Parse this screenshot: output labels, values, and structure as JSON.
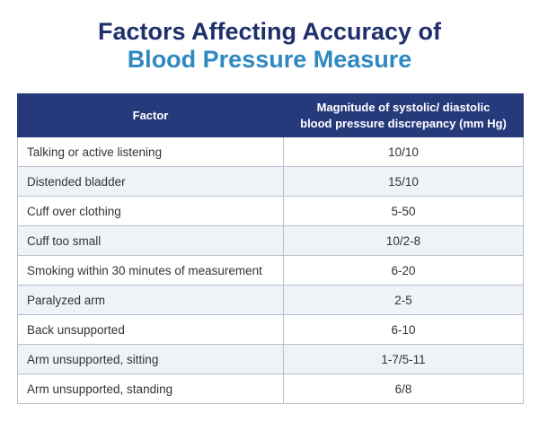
{
  "title": {
    "line1": "Factors Affecting Accuracy of",
    "line2": "Blood Pressure Measure"
  },
  "table": {
    "headers": [
      "Factor",
      "Magnitude of systolic/ diastolic blood pressure  discrepancy (mm Hg)"
    ],
    "rows": [
      [
        "Talking or active listening",
        "10/10"
      ],
      [
        "Distended bladder",
        "15/10"
      ],
      [
        "Cuff over clothing",
        "5-50"
      ],
      [
        "Cuff too small",
        "10/2-8"
      ],
      [
        "Smoking within 30 minutes of measurement",
        "6-20"
      ],
      [
        "Paralyzed arm",
        "2-5"
      ],
      [
        "Back unsupported",
        "6-10"
      ],
      [
        "Arm unsupported, sitting",
        "1-7/5-11"
      ],
      [
        "Arm unsupported, standing",
        "6/8"
      ]
    ]
  },
  "colors": {
    "title_primary": "#1f2f6b",
    "title_accent": "#2f88c0",
    "header_bg": "#263a7b",
    "alt_row": "#eef3f8"
  }
}
